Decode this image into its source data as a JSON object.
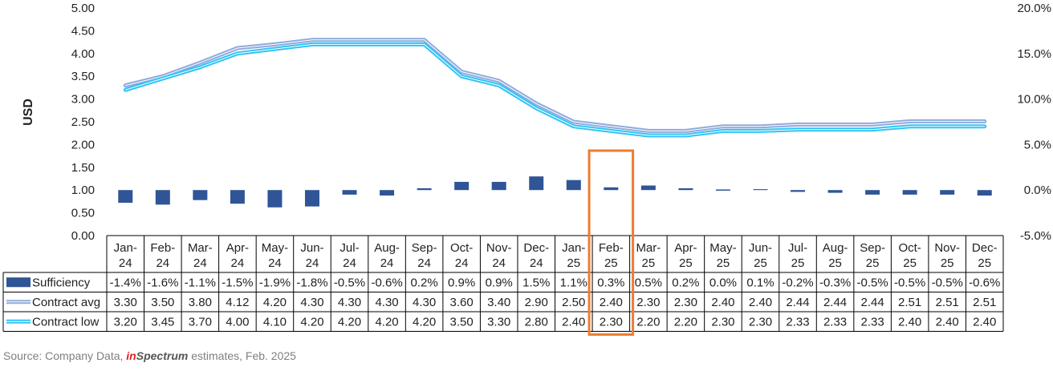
{
  "chart_data": {
    "type": "bar+line with data table",
    "categories": [
      "Jan-24",
      "Feb-24",
      "Mar-24",
      "Apr-24",
      "May-24",
      "Jun-24",
      "Jul-24",
      "Aug-24",
      "Sep-24",
      "Oct-24",
      "Nov-24",
      "Dec-24",
      "Jan-25",
      "Feb-25",
      "Mar-25",
      "Apr-25",
      "May-25",
      "Jun-25",
      "Jul-25",
      "Aug-25",
      "Sep-25",
      "Oct-25",
      "Nov-25",
      "Dec-25"
    ],
    "category_lines": [
      [
        "Jan-",
        "24"
      ],
      [
        "Feb-",
        "24"
      ],
      [
        "Mar-",
        "24"
      ],
      [
        "Apr-",
        "24"
      ],
      [
        "May-",
        "24"
      ],
      [
        "Jun-",
        "24"
      ],
      [
        "Jul-",
        "24"
      ],
      [
        "Aug-",
        "24"
      ],
      [
        "Sep-",
        "24"
      ],
      [
        "Oct-",
        "24"
      ],
      [
        "Nov-",
        "24"
      ],
      [
        "Dec-",
        "24"
      ],
      [
        "Jan-",
        "25"
      ],
      [
        "Feb-",
        "25"
      ],
      [
        "Mar-",
        "25"
      ],
      [
        "Apr-",
        "25"
      ],
      [
        "May-",
        "25"
      ],
      [
        "Jun-",
        "25"
      ],
      [
        "Jul-",
        "25"
      ],
      [
        "Aug-",
        "25"
      ],
      [
        "Sep-",
        "25"
      ],
      [
        "Oct-",
        "25"
      ],
      [
        "Nov-",
        "25"
      ],
      [
        "Dec-",
        "25"
      ]
    ],
    "series": [
      {
        "name": "Sufficiency",
        "kind": "bar",
        "axis": "right",
        "color": "#2f5597",
        "values": [
          -1.4,
          -1.6,
          -1.1,
          -1.5,
          -1.9,
          -1.8,
          -0.5,
          -0.6,
          0.2,
          0.9,
          0.9,
          1.5,
          1.1,
          0.3,
          0.5,
          0.2,
          0.0,
          0.1,
          -0.2,
          -0.3,
          -0.5,
          -0.5,
          -0.5,
          -0.6
        ],
        "labels": [
          "-1.4%",
          "-1.6%",
          "-1.1%",
          "-1.5%",
          "-1.9%",
          "-1.8%",
          "-0.5%",
          "-0.6%",
          "0.2%",
          "0.9%",
          "0.9%",
          "1.5%",
          "1.1%",
          "0.3%",
          "0.5%",
          "0.2%",
          "0.0%",
          "0.1%",
          "-0.2%",
          "-0.3%",
          "-0.5%",
          "-0.5%",
          "-0.5%",
          "-0.6%"
        ]
      },
      {
        "name": "Contract avg",
        "kind": "line",
        "axis": "left",
        "color": "#8faadc",
        "values": [
          3.3,
          3.5,
          3.8,
          4.12,
          4.2,
          4.3,
          4.3,
          4.3,
          4.3,
          3.6,
          3.4,
          2.9,
          2.5,
          2.4,
          2.3,
          2.3,
          2.4,
          2.4,
          2.44,
          2.44,
          2.44,
          2.51,
          2.51,
          2.51
        ],
        "labels": [
          "3.30",
          "3.50",
          "3.80",
          "4.12",
          "4.20",
          "4.30",
          "4.30",
          "4.30",
          "4.30",
          "3.60",
          "3.40",
          "2.90",
          "2.50",
          "2.40",
          "2.30",
          "2.30",
          "2.40",
          "2.40",
          "2.44",
          "2.44",
          "2.44",
          "2.51",
          "2.51",
          "2.51"
        ]
      },
      {
        "name": "Contract low",
        "kind": "line",
        "axis": "left",
        "color": "#2fc4f5",
        "values": [
          3.2,
          3.45,
          3.7,
          4.0,
          4.1,
          4.2,
          4.2,
          4.2,
          4.2,
          3.5,
          3.3,
          2.8,
          2.4,
          2.3,
          2.2,
          2.2,
          2.3,
          2.3,
          2.33,
          2.33,
          2.33,
          2.4,
          2.4,
          2.4
        ],
        "labels": [
          "3.20",
          "3.45",
          "3.70",
          "4.00",
          "4.10",
          "4.20",
          "4.20",
          "4.20",
          "4.20",
          "3.50",
          "3.30",
          "2.80",
          "2.40",
          "2.30",
          "2.20",
          "2.20",
          "2.30",
          "2.30",
          "2.33",
          "2.33",
          "2.33",
          "2.40",
          "2.40",
          "2.40"
        ]
      }
    ],
    "ylabel": "USD",
    "ylim": [
      0,
      5
    ],
    "y_ticks": [
      "0.00",
      "0.50",
      "1.00",
      "1.50",
      "2.00",
      "2.50",
      "3.00",
      "3.50",
      "4.00",
      "4.50",
      "5.00"
    ],
    "y2lim": [
      -5,
      20
    ],
    "y2_ticks": [
      "-5.0%",
      "0.0%",
      "5.0%",
      "10.0%",
      "15.0%",
      "20.0%"
    ],
    "highlight_category": "Feb-25",
    "highlight_color": "#ed7d31",
    "grid": false,
    "legend": "in data table"
  },
  "source": {
    "prefix": "Source: Company Data, ",
    "brand_in": "in",
    "brand_rest": "Spectrum",
    "suffix": " estimates, Feb. 2025"
  }
}
